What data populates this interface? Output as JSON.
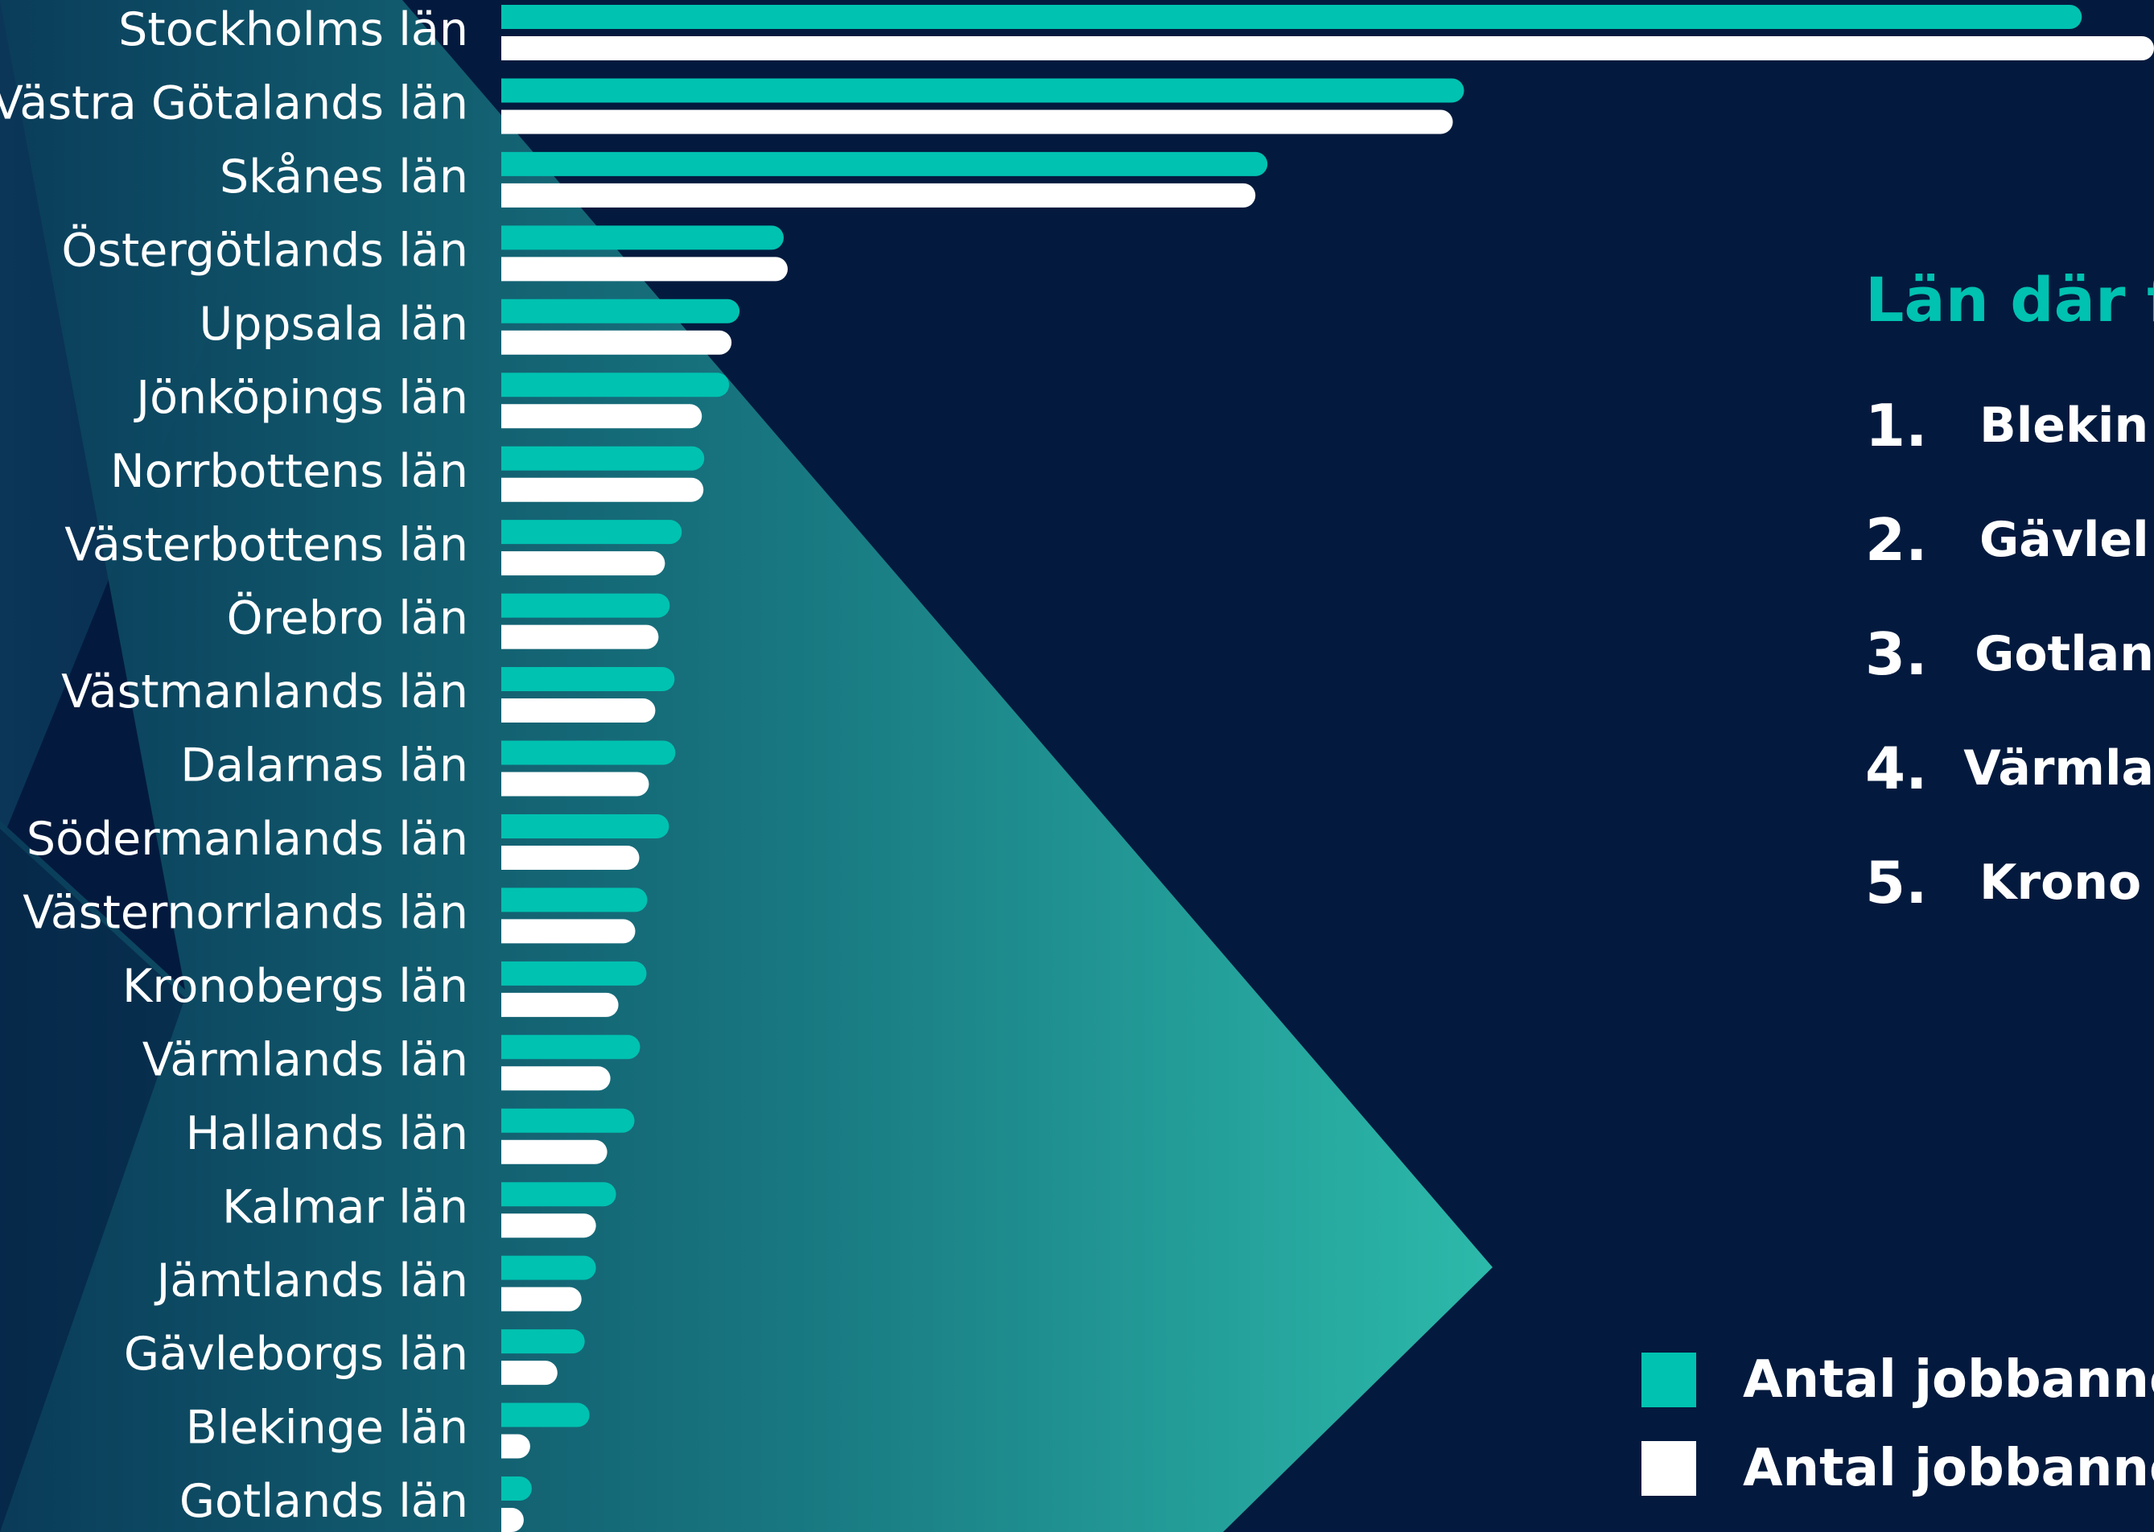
{
  "chart_data": {
    "type": "bar",
    "orientation": "horizontal",
    "categories": [
      "Stockholms län",
      "Västra Götalands län",
      "Skånes län",
      "Östergötlands län",
      "Uppsala län",
      "Jönköpings län",
      "Norrbottens län",
      "Västerbottens län",
      "Örebro län",
      "Västmanlands län",
      "Dalarnas län",
      "Södermanlands län",
      "Västernorrlands län",
      "Kronobergs län",
      "Värmlands län",
      "Hallands län",
      "Kalmar län",
      "Jämtlands län",
      "Gävleborgs län",
      "Blekinge län",
      "Gotlands län"
    ],
    "series": [
      {
        "color": "#00c2b0",
        "values": [
          1970,
          1200,
          955,
          352,
          297,
          284,
          253,
          225,
          210,
          216,
          217,
          209,
          182,
          181,
          173,
          166,
          143,
          118,
          104,
          110,
          38
        ]
      },
      {
        "color": "#ffffff",
        "values": [
          2060,
          1186,
          940,
          357,
          287,
          250,
          252,
          204,
          196,
          192,
          184,
          172,
          167,
          146,
          136,
          132,
          118,
          100,
          70,
          36,
          28
        ]
      }
    ],
    "xlim": [
      0,
      2060
    ],
    "grid": false,
    "legend_position": "bottom-right",
    "legend": [
      "Antal jobbannor",
      "Antal jobbannor"
    ]
  },
  "panel": {
    "title": "Län där f",
    "items": [
      {
        "rank": "1.",
        "name": "Blekin"
      },
      {
        "rank": "2.",
        "name": "Gävlel"
      },
      {
        "rank": "3.",
        "name": "Gotlan"
      },
      {
        "rank": "4.",
        "name": "Värmla"
      },
      {
        "rank": "5.",
        "name": "Krono"
      }
    ]
  },
  "colors": {
    "background": "#031a3e",
    "accent": "#00c2b0",
    "secondary": "#ffffff"
  }
}
